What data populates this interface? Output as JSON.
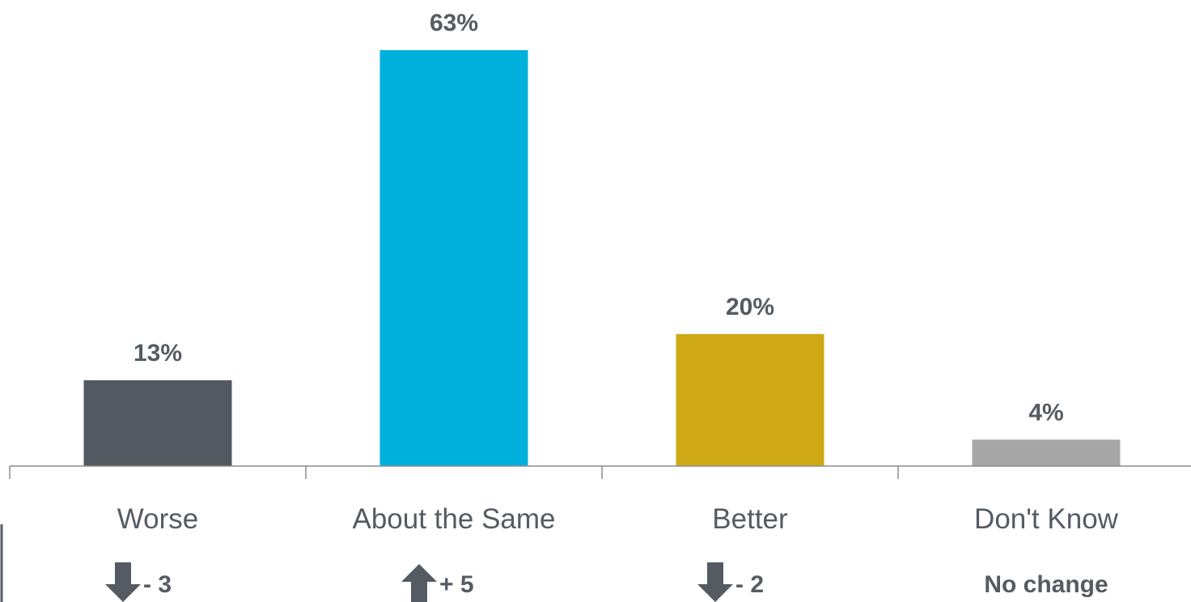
{
  "chart_data": {
    "type": "bar",
    "categories": [
      "Worse",
      "About the Same",
      "Better",
      "Don't Know"
    ],
    "values": [
      13,
      63,
      20,
      4
    ],
    "value_labels": [
      "13%",
      "63%",
      "20%",
      "4%"
    ],
    "colors": [
      "#525961",
      "#00b0dc",
      "#cfa815",
      "#a6a6a6"
    ],
    "ylim": [
      0,
      63
    ],
    "grid": false,
    "legend": "none",
    "title": "",
    "xlabel": "",
    "ylabel": "",
    "changes": [
      {
        "direction": "down",
        "icon": "arrow-down-icon",
        "text": "- 3"
      },
      {
        "direction": "up",
        "icon": "arrow-up-icon",
        "text": "+ 5"
      },
      {
        "direction": "down",
        "icon": "arrow-down-icon",
        "text": "- 2"
      },
      {
        "direction": "none",
        "icon": "",
        "text": "No change"
      }
    ]
  }
}
